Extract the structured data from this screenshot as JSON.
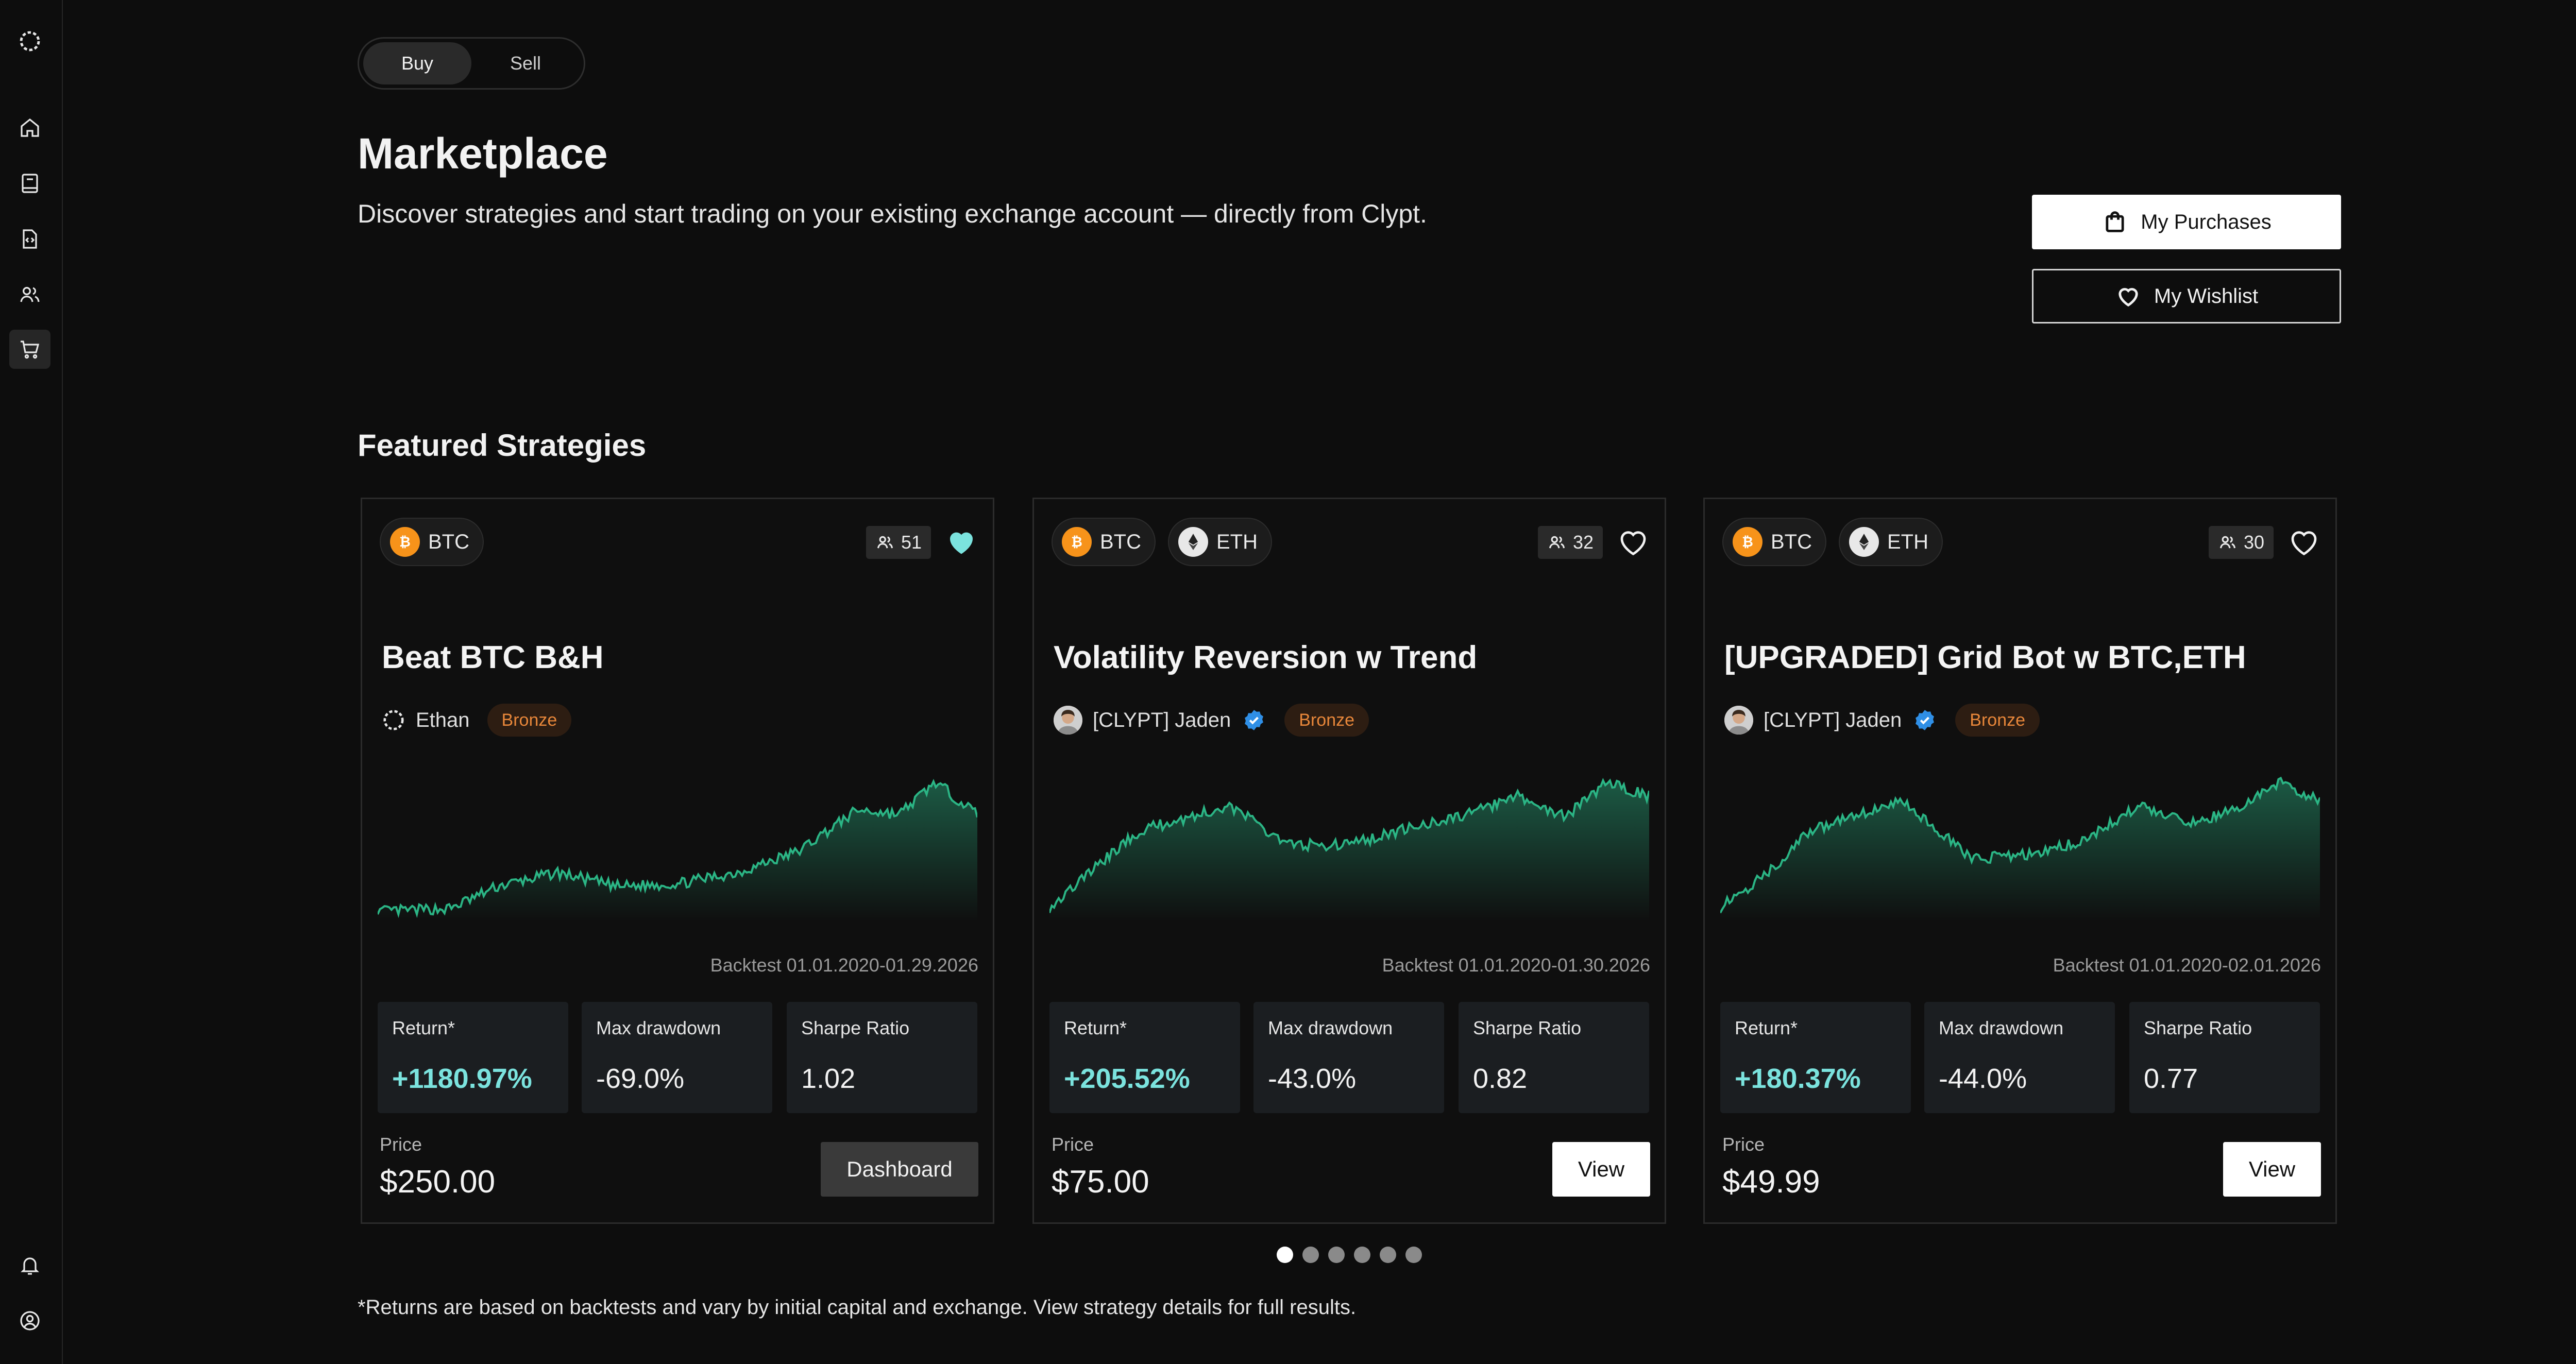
{
  "toggle": {
    "buy": "Buy",
    "sell": "Sell"
  },
  "header": {
    "title": "Marketplace",
    "subtitle": "Discover strategies and start trading on your existing exchange account — directly from Clypt."
  },
  "actions": {
    "purchases": "My Purchases",
    "wishlist": "My Wishlist"
  },
  "section_title": "Featured Strategies",
  "cards": [
    {
      "assets": [
        "BTC"
      ],
      "users": "51",
      "wishlisted": true,
      "name": "Beat BTC B&H",
      "author": "Ethan",
      "tier": "Bronze",
      "backtest": "Backtest 01.01.2020-01.29.2026",
      "return_label": "Return*",
      "return_value": "+1180.97%",
      "drawdown_label": "Max drawdown",
      "drawdown_value": "-69.0%",
      "sharpe_label": "Sharpe Ratio",
      "sharpe_value": "1.02",
      "price_label": "Price",
      "price": "$250.00",
      "button": "Dashboard"
    },
    {
      "assets": [
        "BTC",
        "ETH"
      ],
      "users": "32",
      "wishlisted": false,
      "name": "Volatility Reversion w Trend",
      "author": "[CLYPT] Jaden",
      "tier": "Bronze",
      "backtest": "Backtest 01.01.2020-01.30.2026",
      "return_label": "Return*",
      "return_value": "+205.52%",
      "drawdown_label": "Max drawdown",
      "drawdown_value": "-43.0%",
      "sharpe_label": "Sharpe Ratio",
      "sharpe_value": "0.82",
      "price_label": "Price",
      "price": "$75.00",
      "button": "View"
    },
    {
      "assets": [
        "BTC",
        "ETH"
      ],
      "users": "30",
      "wishlisted": false,
      "name": "[UPGRADED] Grid Bot w BTC,ETH",
      "author": "[CLYPT] Jaden",
      "tier": "Bronze",
      "backtest": "Backtest 01.01.2020-02.01.2026",
      "return_label": "Return*",
      "return_value": "+180.37%",
      "drawdown_label": "Max drawdown",
      "drawdown_value": "-44.0%",
      "sharpe_label": "Sharpe Ratio",
      "sharpe_value": "0.77",
      "price_label": "Price",
      "price": "$49.99",
      "button": "View"
    }
  ],
  "pagination": {
    "count": 6,
    "active": 0
  },
  "footnote": "*Returns are based on backtests and vary by initial capital and exchange. View strategy details for full results.",
  "colors": {
    "accent": "#7be3de",
    "chart": "#2bb585",
    "tier": "#e8873a",
    "verified": "#2f8fe6"
  },
  "icons": {
    "sidebar": [
      "logo-icon",
      "home-icon",
      "book-icon",
      "code-file-icon",
      "users-icon",
      "cart-icon",
      "bell-icon",
      "account-icon"
    ],
    "purchases": "bag-icon",
    "wishlist": "heart-icon"
  }
}
